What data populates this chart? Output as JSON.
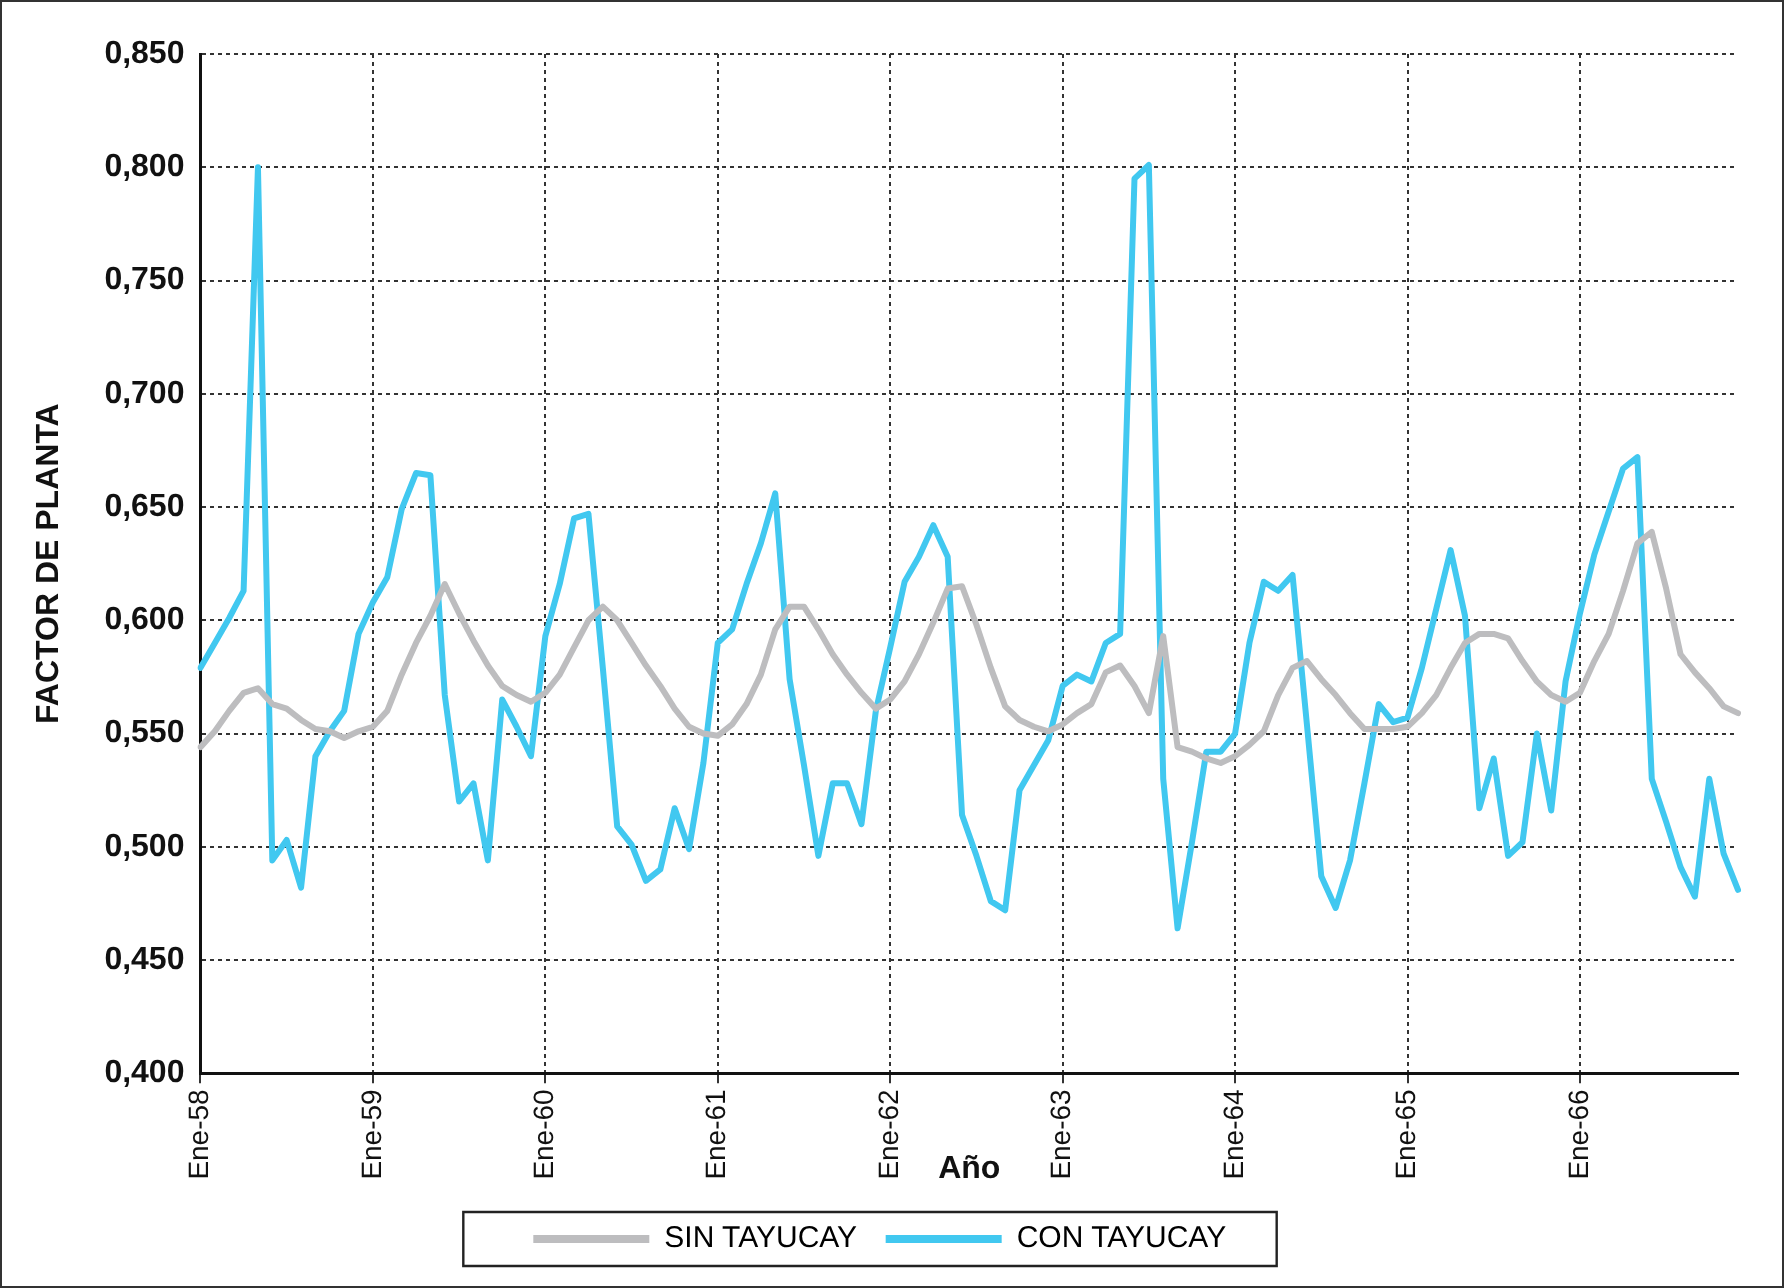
{
  "chart_data": {
    "type": "line",
    "xlabel": "Año",
    "ylabel": "FACTOR DE PLANTA",
    "categories": [
      "Ene-58",
      null,
      null,
      null,
      null,
      null,
      null,
      null,
      null,
      null,
      null,
      null,
      "Ene-59",
      null,
      null,
      null,
      null,
      null,
      null,
      null,
      null,
      null,
      null,
      null,
      "Ene-60",
      null,
      null,
      null,
      null,
      null,
      null,
      null,
      null,
      null,
      null,
      null,
      "Ene-61",
      null,
      null,
      null,
      null,
      null,
      null,
      null,
      null,
      null,
      null,
      null,
      "Ene-62",
      null,
      null,
      null,
      null,
      null,
      null,
      null,
      null,
      null,
      null,
      null,
      "Ene-63",
      null,
      null,
      null,
      null,
      null,
      null,
      null,
      null,
      null,
      null,
      null,
      "Ene-64",
      null,
      null,
      null,
      null,
      null,
      null,
      null,
      null,
      null,
      null,
      null,
      "Ene-65",
      null,
      null,
      null,
      null,
      null,
      null,
      null,
      null,
      null,
      null,
      null,
      "Ene-66",
      null,
      null,
      null,
      null,
      null,
      null,
      null,
      null,
      null,
      null,
      null
    ],
    "series": [
      {
        "name": "SIN TAYUCAY",
        "color": "#bdbdbf",
        "values": [
          0.544,
          0.551,
          0.56,
          0.568,
          0.57,
          0.563,
          0.561,
          0.556,
          0.552,
          0.551,
          0.548,
          0.551,
          0.553,
          0.56,
          0.576,
          0.59,
          0.602,
          0.616,
          0.603,
          0.591,
          0.58,
          0.571,
          0.567,
          0.564,
          0.568,
          0.576,
          0.588,
          0.6,
          0.606,
          0.6,
          0.59,
          0.58,
          0.571,
          0.561,
          0.553,
          0.55,
          0.549,
          0.554,
          0.563,
          0.576,
          0.596,
          0.606,
          0.606,
          0.596,
          0.585,
          0.576,
          0.568,
          0.561,
          0.565,
          0.573,
          0.585,
          0.599,
          0.614,
          0.615,
          0.598,
          0.579,
          0.562,
          0.556,
          0.553,
          0.551,
          0.554,
          0.559,
          0.563,
          0.577,
          0.58,
          0.571,
          0.559,
          0.593,
          0.544,
          0.542,
          0.539,
          0.537,
          0.54,
          0.545,
          0.551,
          0.567,
          0.579,
          0.582,
          0.574,
          0.567,
          0.559,
          0.552,
          0.552,
          0.552,
          0.553,
          0.559,
          0.567,
          0.579,
          0.59,
          0.594,
          0.594,
          0.592,
          0.582,
          0.573,
          0.567,
          0.564,
          0.568,
          0.582,
          0.594,
          0.613,
          0.634,
          0.639,
          0.614,
          0.585,
          0.577,
          0.57,
          0.562,
          0.559
        ]
      },
      {
        "name": "CON TAYUCAY",
        "color": "#41c8f0",
        "values": [
          0.579,
          0.59,
          0.601,
          0.613,
          0.8,
          0.494,
          0.503,
          0.482,
          0.54,
          0.551,
          0.56,
          0.594,
          0.608,
          0.619,
          0.649,
          0.665,
          0.664,
          0.567,
          0.52,
          0.528,
          0.494,
          0.565,
          0.553,
          0.54,
          0.593,
          0.616,
          0.645,
          0.647,
          0.579,
          0.509,
          0.501,
          0.485,
          0.49,
          0.517,
          0.499,
          0.537,
          0.59,
          0.596,
          0.616,
          0.634,
          0.656,
          0.574,
          0.536,
          0.496,
          0.528,
          0.528,
          0.51,
          0.56,
          0.588,
          0.617,
          0.628,
          0.642,
          0.628,
          0.514,
          0.496,
          0.476,
          0.472,
          0.525,
          0.536,
          0.547,
          0.571,
          0.576,
          0.573,
          0.59,
          0.594,
          0.795,
          0.801,
          0.53,
          0.464,
          0.502,
          0.542,
          0.542,
          0.55,
          0.59,
          0.617,
          0.613,
          0.62,
          0.554,
          0.487,
          0.473,
          0.494,
          0.528,
          0.563,
          0.555,
          0.557,
          0.579,
          0.605,
          0.631,
          0.602,
          0.517,
          0.539,
          0.496,
          0.502,
          0.55,
          0.516,
          0.573,
          0.603,
          0.629,
          0.648,
          0.667,
          0.672,
          0.53,
          0.511,
          0.491,
          0.478,
          0.53,
          0.497,
          0.481
        ]
      }
    ],
    "ylim": [
      0.4,
      0.85
    ],
    "yticks": [
      {
        "value": 0.4,
        "label": "0,400"
      },
      {
        "value": 0.45,
        "label": "0,450"
      },
      {
        "value": 0.5,
        "label": "0,500"
      },
      {
        "value": 0.55,
        "label": "0,550"
      },
      {
        "value": 0.6,
        "label": "0,600"
      },
      {
        "value": 0.65,
        "label": "0,650"
      },
      {
        "value": 0.7,
        "label": "0,700"
      },
      {
        "value": 0.75,
        "label": "0,750"
      },
      {
        "value": 0.8,
        "label": "0,800"
      },
      {
        "value": 0.85,
        "label": "0,850"
      }
    ],
    "grid": true,
    "legend": "bottom",
    "marker": "none",
    "line_style": "solid"
  }
}
